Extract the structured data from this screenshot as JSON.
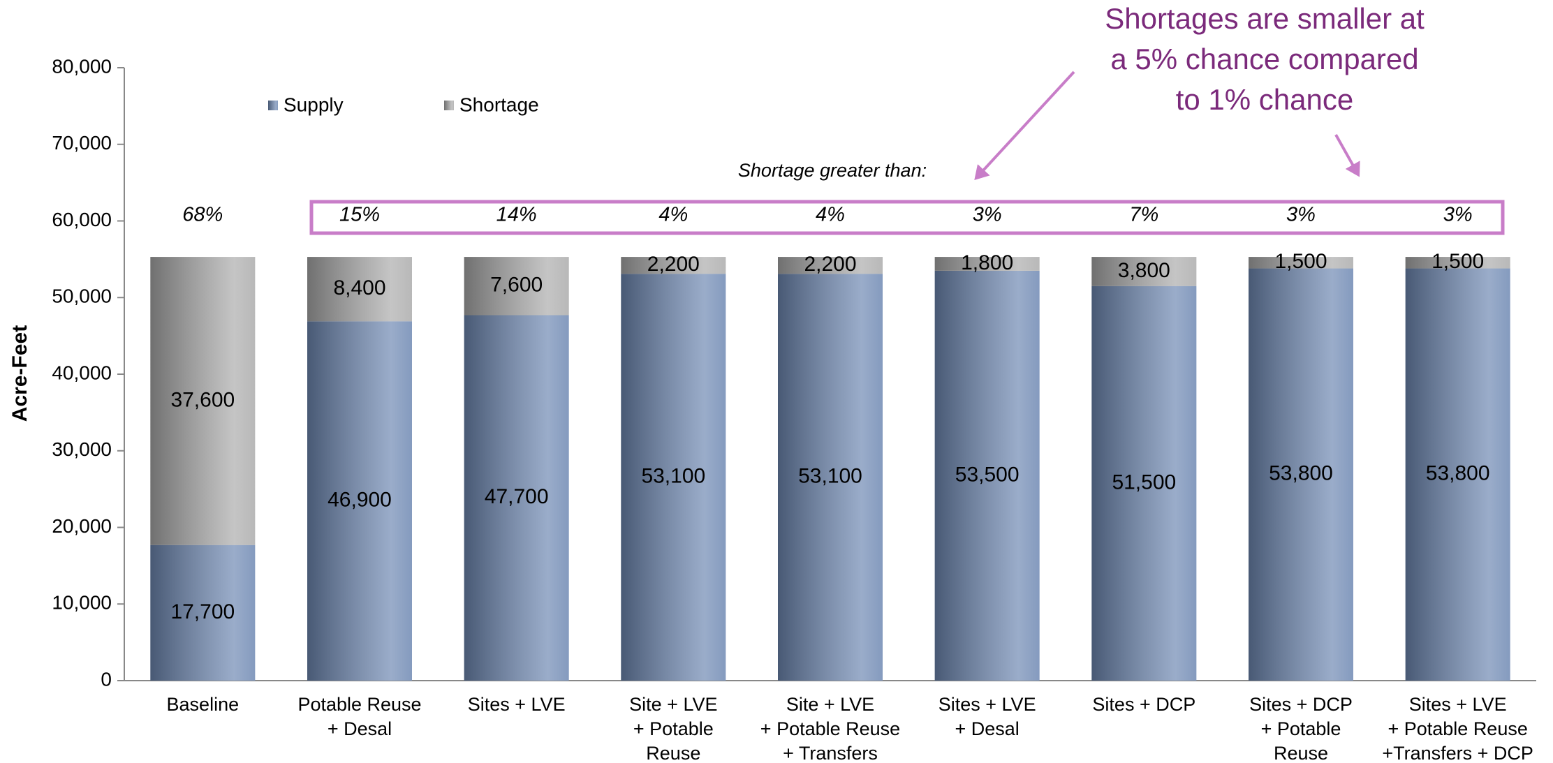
{
  "chart_data": {
    "type": "stacked_bar",
    "y_label": "Acre-Feet",
    "categories": [
      [
        "Baseline"
      ],
      [
        "Potable Reuse",
        "+ Desal"
      ],
      [
        "Sites + LVE"
      ],
      [
        "Site + LVE",
        "+ Potable",
        "Reuse"
      ],
      [
        "Site + LVE",
        "+ Potable Reuse",
        "+ Transfers"
      ],
      [
        "Sites + LVE",
        "+ Desal"
      ],
      [
        "Sites + DCP"
      ],
      [
        "Sites + DCP",
        "+ Potable",
        "Reuse"
      ],
      [
        "Sites + LVE",
        "+ Potable Reuse",
        "+Transfers + DCP"
      ]
    ],
    "series": [
      {
        "name": "Supply",
        "color": "#6f89b3",
        "values": [
          17700,
          46900,
          47700,
          53100,
          53100,
          53500,
          51500,
          53800,
          53800
        ],
        "value_labels": [
          "17,700",
          "46,900",
          "47,700",
          "53,100",
          "53,100",
          "53,500",
          "51,500",
          "53,800",
          "53,800"
        ]
      },
      {
        "name": "Shortage",
        "color": "#acacac",
        "values": [
          37600,
          8400,
          7600,
          2200,
          2200,
          1800,
          3800,
          1500,
          1500
        ],
        "value_labels": [
          "37,600",
          "8,400",
          "7,600",
          "2,200",
          "2,200",
          "1,800",
          "3,800",
          "1,500",
          "1,500"
        ]
      }
    ],
    "shortage_probability": {
      "title": "Shortage greater than:",
      "values": [
        68,
        15,
        14,
        4,
        4,
        3,
        7,
        3,
        3
      ],
      "value_labels": [
        "68%",
        "15%",
        "14%",
        "4%",
        "4%",
        "3%",
        "7%",
        "3%",
        "3%"
      ]
    },
    "annotation": [
      "Shortages are smaller at",
      "a 5% chance compared",
      "to 1% chance"
    ],
    "ylim": [
      0,
      80000
    ],
    "yticks": [
      0,
      {
        "value": 10000,
        "label": "10,000"
      },
      {
        "value": 20000,
        "label": "20,000"
      },
      {
        "value": 30000,
        "label": "30,000"
      },
      {
        "value": 40000,
        "label": "40,000"
      },
      {
        "value": 50000,
        "label": "50,000"
      },
      {
        "value": 60000,
        "label": "60,000"
      },
      {
        "value": 70000,
        "label": "70,000"
      },
      {
        "value": 80000,
        "label": "80,000"
      }
    ],
    "grid": false
  }
}
